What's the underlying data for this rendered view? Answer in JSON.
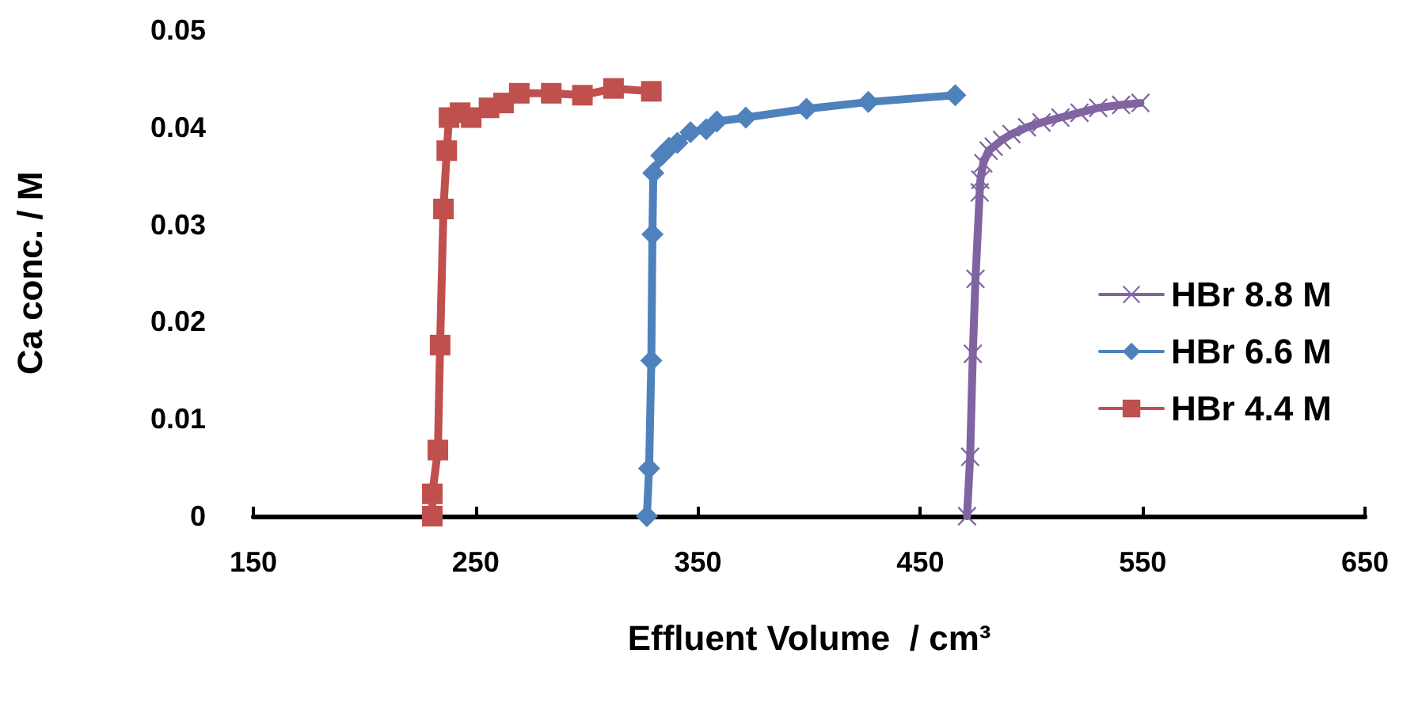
{
  "chart_data": {
    "type": "line",
    "xlabel": "Effluent Volume  / cm³",
    "ylabel": "Ca conc. / M",
    "xlim": [
      150,
      650
    ],
    "xticks": [
      150,
      250,
      350,
      450,
      550,
      650
    ],
    "ylim": [
      0,
      0.05
    ],
    "yticks": [
      0,
      0.01,
      0.02,
      0.03,
      0.04,
      0.05
    ],
    "grid": false,
    "legend": "right",
    "series": [
      {
        "name": "HBr 8.8 M",
        "color": "#8064a2",
        "marker": "cross",
        "x": [
          471,
          472.4,
          473.6,
          474.8,
          476.7,
          477,
          478.3,
          480.7,
          483,
          486.7,
          491,
          498,
          504.5,
          513,
          521.6,
          530,
          540.3,
          549
        ],
        "values": [
          0,
          0.0061,
          0.0167,
          0.0244,
          0.0333,
          0.0346,
          0.0363,
          0.0376,
          0.038,
          0.0387,
          0.0393,
          0.04,
          0.0405,
          0.041,
          0.0415,
          0.042,
          0.0423,
          0.0425
        ]
      },
      {
        "name": "HBr 6.6 M",
        "color": "#4f81bd",
        "marker": "diamond",
        "x": [
          327,
          328,
          329,
          329.5,
          329.9,
          333.5,
          337,
          340.7,
          346.6,
          353.7,
          358.5,
          371.5,
          398.8,
          426.6,
          465.7
        ],
        "values": [
          0,
          0.0049,
          0.016,
          0.029,
          0.0353,
          0.0371,
          0.0379,
          0.0384,
          0.0395,
          0.0398,
          0.0406,
          0.041,
          0.0419,
          0.0426,
          0.0433
        ]
      },
      {
        "name": "HBr 4.4 M",
        "color": "#c0504d",
        "marker": "square",
        "x": [
          230.5,
          230.5,
          233,
          234,
          235.5,
          237,
          238,
          243,
          248,
          256,
          262.5,
          269.6,
          284,
          298,
          312,
          329
        ],
        "values": [
          0,
          0.0023,
          0.0068,
          0.0176,
          0.0316,
          0.0376,
          0.041,
          0.0415,
          0.041,
          0.042,
          0.0425,
          0.0435,
          0.0435,
          0.0433,
          0.044,
          0.0437
        ]
      }
    ]
  }
}
